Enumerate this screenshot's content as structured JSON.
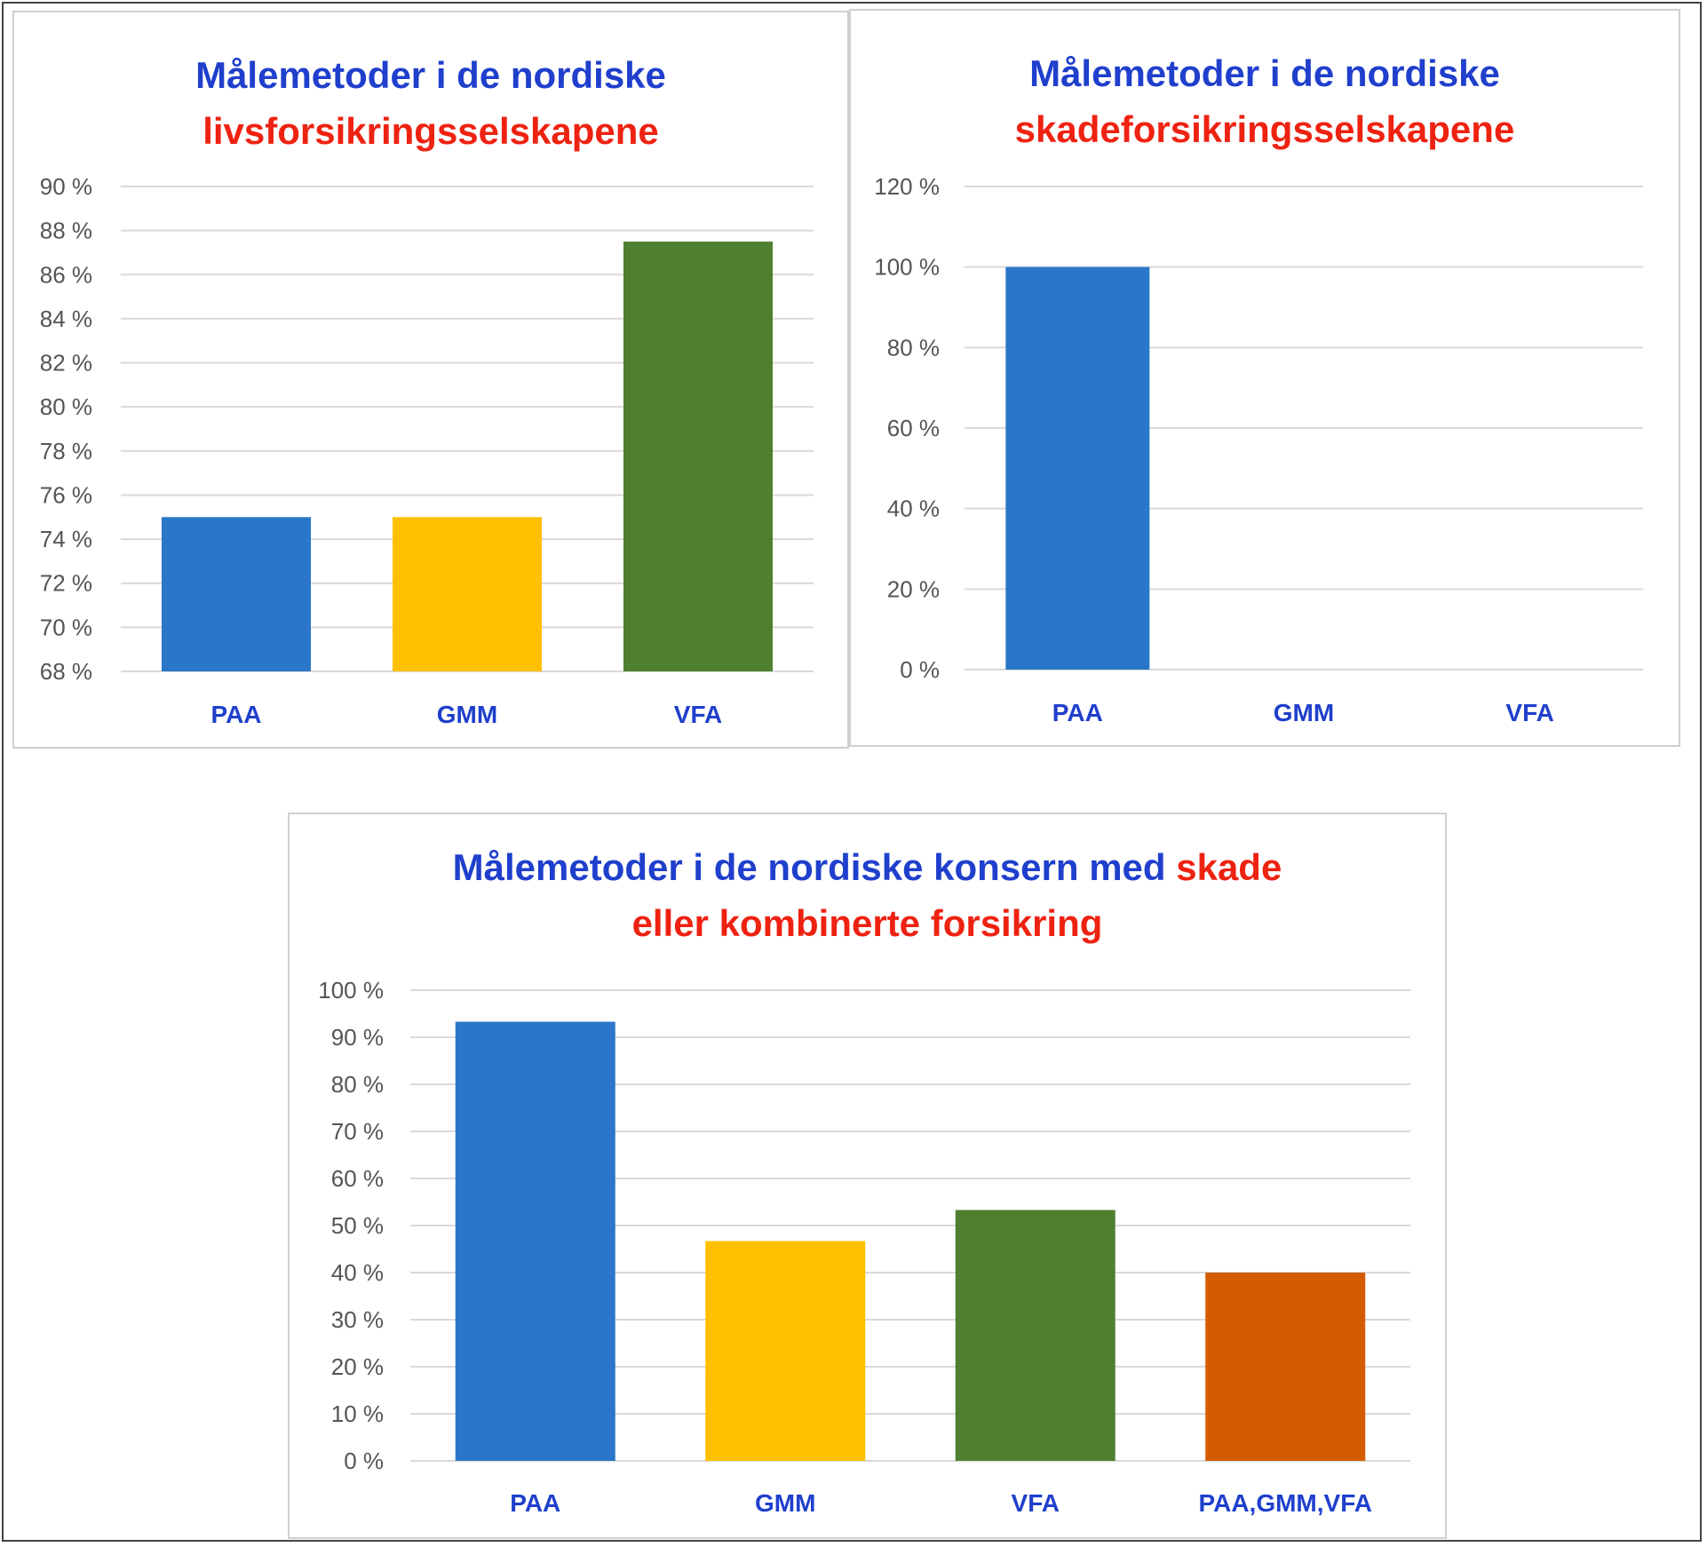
{
  "chart_data": [
    {
      "type": "bar",
      "title_lines": [
        [
          {
            "text": "Målemetoder i de nordiske",
            "color": "#1f3fcc"
          }
        ],
        [
          {
            "text": "livsforsikringsselskapene",
            "color": "#ee2211"
          }
        ]
      ],
      "categories": [
        "PAA",
        "GMM",
        "VFA"
      ],
      "values": [
        75,
        75,
        87.5
      ],
      "bar_colors": [
        "#2a77c9",
        "#ffc000",
        "#4e8030"
      ],
      "ylim": [
        68,
        90
      ],
      "yticks": [
        68,
        70,
        72,
        74,
        76,
        78,
        80,
        82,
        84,
        86,
        88,
        90
      ],
      "tick_labels": [
        "68 %",
        "70 %",
        "72 %",
        "74 %",
        "76 %",
        "78 %",
        "80 %",
        "82 %",
        "84 %",
        "86 %",
        "88 %",
        "90 %"
      ],
      "grid": true,
      "legend": "none"
    },
    {
      "type": "bar",
      "title_lines": [
        [
          {
            "text": "Målemetoder i de nordiske",
            "color": "#1f3fcc"
          }
        ],
        [
          {
            "text": "skadeforsikringsselskapene",
            "color": "#ee2211"
          }
        ]
      ],
      "categories": [
        "PAA",
        "GMM",
        "VFA"
      ],
      "values": [
        100,
        0,
        0
      ],
      "bar_colors": [
        "#2a77c9",
        "#ffc000",
        "#4e8030"
      ],
      "ylim": [
        0,
        120
      ],
      "yticks": [
        0,
        20,
        40,
        60,
        80,
        100,
        120
      ],
      "tick_labels": [
        "0 %",
        "20 %",
        "40 %",
        "60 %",
        "80 %",
        "100 %",
        "120 %"
      ],
      "grid": true,
      "legend": "none"
    },
    {
      "type": "bar",
      "title_lines": [
        [
          {
            "text": "Målemetoder i de nordiske konsern med ",
            "color": "#1f3fcc"
          },
          {
            "text": "skade",
            "color": "#ee2211"
          }
        ],
        [
          {
            "text": "eller kombinerte forsikring",
            "color": "#ee2211"
          }
        ]
      ],
      "categories": [
        "PAA",
        "GMM",
        "VFA",
        "PAA,GMM,VFA"
      ],
      "values": [
        93.3,
        46.7,
        53.3,
        40
      ],
      "bar_colors": [
        "#2a77c9",
        "#ffc000",
        "#4e8030",
        "#d35c00"
      ],
      "ylim": [
        0,
        100
      ],
      "yticks": [
        0,
        10,
        20,
        30,
        40,
        50,
        60,
        70,
        80,
        90,
        100
      ],
      "tick_labels": [
        "0 %",
        "10 %",
        "20 %",
        "30 %",
        "40 %",
        "50 %",
        "60 %",
        "70 %",
        "80 %",
        "90 %",
        "100 %"
      ],
      "grid": true,
      "legend": "none"
    }
  ]
}
